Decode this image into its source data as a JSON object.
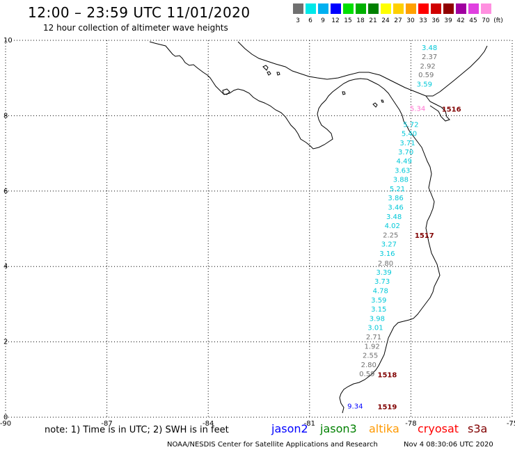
{
  "header": {
    "title": "12:00 – 23:59 UTC 11/01/2020",
    "subtitle": "12 hour collection of altimeter wave heights"
  },
  "color_scale": {
    "labels": [
      "3",
      "6",
      "9",
      "12",
      "15",
      "18",
      "21",
      "24",
      "27",
      "30",
      "33",
      "36",
      "39",
      "42",
      "45",
      "70",
      "(ft)"
    ],
    "colors": [
      "#707070",
      "#00e8e8",
      "#00b0f0",
      "#0000ff",
      "#00e000",
      "#00b000",
      "#008000",
      "#ffff00",
      "#ffd000",
      "#ffa000",
      "#ff0000",
      "#d00000",
      "#900000",
      "#a000a0",
      "#e040e0",
      "#ff90e0",
      "#000000"
    ]
  },
  "axes": {
    "x_ticks": [
      "-90",
      "-87",
      "-84",
      "-81",
      "-78",
      "-75"
    ],
    "y_ticks": [
      "10",
      "8",
      "6",
      "4",
      "2",
      "0"
    ]
  },
  "wave_heights": {
    "values": [
      {
        "v": "3.48",
        "lon": -77.45,
        "lat": 9.82,
        "c": "#00c8d8"
      },
      {
        "v": "2.37",
        "lon": -77.45,
        "lat": 9.58,
        "c": "#707070"
      },
      {
        "v": "2.92",
        "lon": -77.5,
        "lat": 9.33,
        "c": "#707070"
      },
      {
        "v": "0.59",
        "lon": -77.55,
        "lat": 9.1,
        "c": "#707070"
      },
      {
        "v": "3.59",
        "lon": -77.6,
        "lat": 8.85,
        "c": "#00c8d8"
      },
      {
        "v": "5.34",
        "lon": -77.8,
        "lat": 8.2,
        "c": "#ff70d0"
      },
      {
        "v": "5.72",
        "lon": -78.0,
        "lat": 7.78,
        "c": "#00c8d8"
      },
      {
        "v": "5.40",
        "lon": -78.05,
        "lat": 7.54,
        "c": "#00c8d8"
      },
      {
        "v": "3.71",
        "lon": -78.1,
        "lat": 7.29,
        "c": "#00c8d8"
      },
      {
        "v": "3.70",
        "lon": -78.15,
        "lat": 7.05,
        "c": "#00c8d8"
      },
      {
        "v": "4.49",
        "lon": -78.2,
        "lat": 6.81,
        "c": "#00c8d8"
      },
      {
        "v": "3.63",
        "lon": -78.25,
        "lat": 6.56,
        "c": "#00c8d8"
      },
      {
        "v": "3.88",
        "lon": -78.3,
        "lat": 6.32,
        "c": "#00c8d8"
      },
      {
        "v": "5.21",
        "lon": -78.4,
        "lat": 6.07,
        "c": "#00c8d8"
      },
      {
        "v": "3.86",
        "lon": -78.45,
        "lat": 5.83,
        "c": "#00c8d8"
      },
      {
        "v": "3.46",
        "lon": -78.45,
        "lat": 5.58,
        "c": "#00c8d8"
      },
      {
        "v": "3.48",
        "lon": -78.5,
        "lat": 5.33,
        "c": "#00c8d8"
      },
      {
        "v": "4.02",
        "lon": -78.55,
        "lat": 5.09,
        "c": "#00c8d8"
      },
      {
        "v": "2.25",
        "lon": -78.6,
        "lat": 4.84,
        "c": "#707070"
      },
      {
        "v": "3.27",
        "lon": -78.65,
        "lat": 4.6,
        "c": "#00c8d8"
      },
      {
        "v": "3.16",
        "lon": -78.7,
        "lat": 4.35,
        "c": "#00c8d8"
      },
      {
        "v": "2.80",
        "lon": -78.75,
        "lat": 4.1,
        "c": "#707070"
      },
      {
        "v": "3.39",
        "lon": -78.8,
        "lat": 3.86,
        "c": "#00c8d8"
      },
      {
        "v": "3.73",
        "lon": -78.85,
        "lat": 3.62,
        "c": "#00c8d8"
      },
      {
        "v": "4.78",
        "lon": -78.9,
        "lat": 3.37,
        "c": "#00c8d8"
      },
      {
        "v": "3.59",
        "lon": -78.95,
        "lat": 3.12,
        "c": "#00c8d8"
      },
      {
        "v": "3.15",
        "lon": -78.95,
        "lat": 2.88,
        "c": "#00c8d8"
      },
      {
        "v": "3.98",
        "lon": -79.0,
        "lat": 2.63,
        "c": "#00c8d8"
      },
      {
        "v": "3.01",
        "lon": -79.05,
        "lat": 2.39,
        "c": "#00c8d8"
      },
      {
        "v": "2.71",
        "lon": -79.1,
        "lat": 2.14,
        "c": "#707070"
      },
      {
        "v": "1.92",
        "lon": -79.15,
        "lat": 1.89,
        "c": "#707070"
      },
      {
        "v": "2.55",
        "lon": -79.2,
        "lat": 1.65,
        "c": "#707070"
      },
      {
        "v": "2.80",
        "lon": -79.25,
        "lat": 1.4,
        "c": "#707070"
      },
      {
        "v": "0.59",
        "lon": -79.3,
        "lat": 1.16,
        "c": "#707070"
      },
      {
        "v": "9.34",
        "lon": -79.65,
        "lat": 0.3,
        "c": "#0000ff"
      }
    ],
    "times": [
      {
        "t": "1516",
        "lon": -76.8,
        "lat": 8.2
      },
      {
        "t": "1517",
        "lon": -77.6,
        "lat": 4.85
      },
      {
        "t": "1518",
        "lon": -78.7,
        "lat": 1.15
      },
      {
        "t": "1519",
        "lon": -78.7,
        "lat": 0.3
      }
    ]
  },
  "footer": {
    "note": "note: 1) Time is in UTC; 2) SWH is in feet",
    "satellites": [
      {
        "name": "jason2",
        "color": "#0000ff"
      },
      {
        "name": "jason3",
        "color": "#008000"
      },
      {
        "name": "altika",
        "color": "#ff9900"
      },
      {
        "name": "cryosat",
        "color": "#ff0000"
      },
      {
        "name": "s3a",
        "color": "#800000"
      }
    ],
    "credit": "NOAA/NESDIS Center for Satellite Applications and Research",
    "timestamp": "Nov  4 08:30:06 UTC 2020"
  }
}
